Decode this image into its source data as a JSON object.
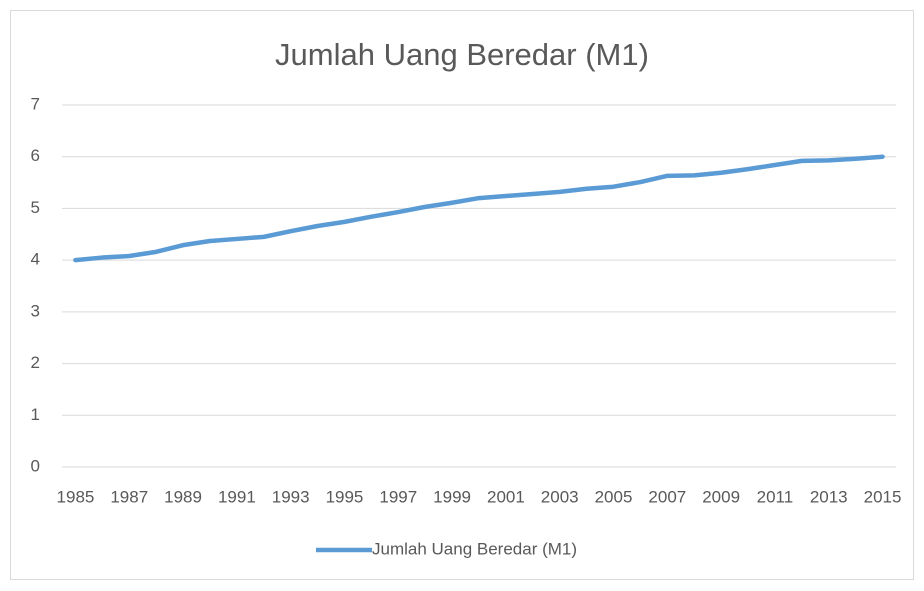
{
  "chart_data": {
    "type": "line",
    "title": "Jumlah Uang Beredar (M1)",
    "categories": [
      "1985",
      null,
      "1987",
      null,
      "1989",
      null,
      "1991",
      null,
      "1993",
      null,
      "1995",
      null,
      "1997",
      null,
      "1999",
      null,
      "2001",
      null,
      "2003",
      null,
      "2005",
      null,
      "2007",
      null,
      "2009",
      null,
      "2011",
      null,
      "2013",
      null,
      "2015"
    ],
    "series": [
      {
        "name": "Jumlah Uang Beredar (M1)",
        "color": "#5b9bd5",
        "values": [
          4.0,
          4.05,
          4.08,
          4.16,
          4.29,
          4.37,
          4.41,
          4.45,
          4.56,
          4.66,
          4.74,
          4.84,
          4.93,
          5.03,
          5.11,
          5.2,
          5.24,
          5.28,
          5.32,
          5.38,
          5.42,
          5.51,
          5.63,
          5.64,
          5.69,
          5.76,
          5.84,
          5.92,
          5.93,
          5.96,
          6.0
        ]
      }
    ],
    "ylim": [
      0,
      7
    ],
    "yticks": [
      0,
      1,
      2,
      3,
      4,
      5,
      6,
      7
    ],
    "grid": true,
    "legend": "bottom"
  }
}
